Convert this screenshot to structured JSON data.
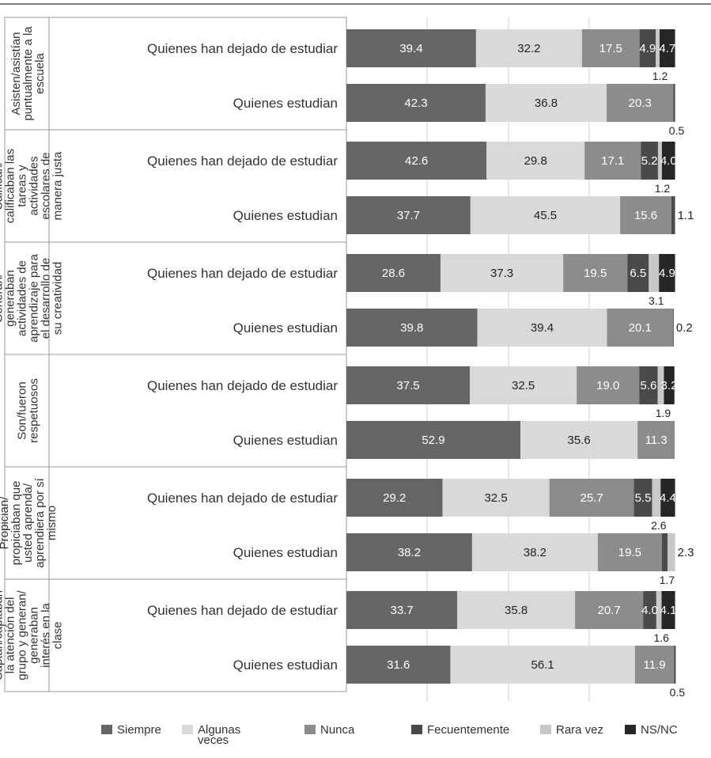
{
  "chart_data": {
    "type": "bar",
    "orientation": "horizontal",
    "stacked": true,
    "grid": true,
    "legend_position": "bottom",
    "xlim": [
      0,
      100
    ],
    "groups": [
      {
        "label_lines": [
          "Asisten/asistían",
          "puntualmente a la",
          "escuela"
        ],
        "rows": [
          {
            "label": "Quienes han dejado de estudiar",
            "values": [
              39.4,
              32.2,
              17.5,
              4.9,
              1.2,
              4.7
            ]
          },
          {
            "label": "Quienes estudian",
            "values": [
              42.3,
              36.8,
              20.3,
              0.5,
              0,
              0
            ]
          }
        ]
      },
      {
        "label_lines": [
          "Califican/",
          "calificaban las",
          "tareas y",
          "actividades",
          "escolares de",
          "manera justa"
        ],
        "rows": [
          {
            "label": "Quienes han dejado de estudiar",
            "values": [
              42.6,
              29.8,
              17.1,
              5.2,
              1.2,
              4.0
            ]
          },
          {
            "label": "Quienes estudian",
            "values": [
              37.7,
              45.5,
              15.6,
              1.1,
              0,
              0
            ]
          }
        ]
      },
      {
        "label_lines": [
          "Generan/",
          "generaban",
          "actividades de",
          "aprendizaje para",
          "el desarrollo de",
          "su creatividad"
        ],
        "rows": [
          {
            "label": "Quienes han dejado de estudiar",
            "values": [
              28.6,
              37.3,
              19.5,
              6.5,
              3.1,
              4.9
            ]
          },
          {
            "label": "Quienes estudian",
            "values": [
              39.8,
              39.4,
              20.1,
              0.2,
              0,
              0
            ]
          }
        ]
      },
      {
        "label_lines": [
          "Son/fueron",
          "respetuosos"
        ],
        "rows": [
          {
            "label": "Quienes han dejado de estudiar",
            "values": [
              37.5,
              32.5,
              19.0,
              5.6,
              1.9,
              3.2
            ]
          },
          {
            "label": "Quienes estudian",
            "values": [
              52.9,
              35.6,
              11.3,
              0,
              0,
              0
            ]
          }
        ]
      },
      {
        "label_lines": [
          "Propician/",
          "propiciaban que",
          "usted aprenda/",
          "aprendiera por sí",
          "mismo"
        ],
        "rows": [
          {
            "label": "Quienes han dejado de estudiar",
            "values": [
              29.2,
              32.5,
              25.7,
              5.5,
              2.6,
              4.4
            ]
          },
          {
            "label": "Quienes estudian",
            "values": [
              38.2,
              38.2,
              19.5,
              1.7,
              2.3,
              0
            ]
          }
        ]
      },
      {
        "label_lines": [
          "Captan/captaban",
          "la atención del",
          "grupo y generan/",
          "generaban",
          "interés en la",
          "clase"
        ],
        "rows": [
          {
            "label": "Quienes han dejado de estudiar",
            "values": [
              33.7,
              35.8,
              20.7,
              4.0,
              1.6,
              4.1
            ]
          },
          {
            "label": "Quienes estudian",
            "values": [
              31.6,
              56.1,
              11.9,
              0.5,
              0,
              0
            ]
          }
        ]
      }
    ],
    "series": [
      {
        "name": "Siempre",
        "color": "#666666"
      },
      {
        "name": "Algunas veces",
        "color": "#d9d9d9"
      },
      {
        "name": "Nunca",
        "color": "#8c8c8c"
      },
      {
        "name": "Fecuentemente",
        "color": "#4a4a4a"
      },
      {
        "name": "Rara vez",
        "color": "#c8c8c8"
      },
      {
        "name": "NS/NC",
        "color": "#262626"
      }
    ],
    "labels": [
      [
        [
          {
            "text": "39.4",
            "seg": 0
          },
          {
            "text": "32.2",
            "seg": 1
          },
          {
            "text": "17.5",
            "seg": 2
          },
          {
            "text": "4.9",
            "seg": 3
          },
          {
            "text": "4.7",
            "seg": 5
          },
          {
            "text": "1.2",
            "seg": 4,
            "below": true
          }
        ],
        [
          {
            "text": "42.3",
            "seg": 0
          },
          {
            "text": "36.8",
            "seg": 1
          },
          {
            "text": "20.3",
            "seg": 2
          },
          {
            "text": "0.5",
            "seg": 3,
            "below": true
          }
        ]
      ],
      [
        [
          {
            "text": "42.6",
            "seg": 0
          },
          {
            "text": "29.8",
            "seg": 1
          },
          {
            "text": "17.1",
            "seg": 2
          },
          {
            "text": "5.2",
            "seg": 3
          },
          {
            "text": "4.0",
            "seg": 5
          },
          {
            "text": "1.2",
            "seg": 4,
            "below": true
          }
        ],
        [
          {
            "text": "37.7",
            "seg": 0
          },
          {
            "text": "45.5",
            "seg": 1
          },
          {
            "text": "15.6",
            "seg": 2
          },
          {
            "text": "1.1",
            "seg": 3,
            "outside": true
          }
        ]
      ],
      [
        [
          {
            "text": "28.6",
            "seg": 0
          },
          {
            "text": "37.3",
            "seg": 1
          },
          {
            "text": "19.5",
            "seg": 2
          },
          {
            "text": "6.5",
            "seg": 3
          },
          {
            "text": "4.9",
            "seg": 5
          },
          {
            "text": "3.1",
            "seg": 4,
            "below": true
          }
        ],
        [
          {
            "text": "39.8",
            "seg": 0
          },
          {
            "text": "39.4",
            "seg": 1
          },
          {
            "text": "20.1",
            "seg": 2
          },
          {
            "text": "0.2",
            "seg": 3,
            "outside": true
          }
        ]
      ],
      [
        [
          {
            "text": "37.5",
            "seg": 0
          },
          {
            "text": "32.5",
            "seg": 1
          },
          {
            "text": "19.0",
            "seg": 2
          },
          {
            "text": "5.6",
            "seg": 3
          },
          {
            "text": "3.2",
            "seg": 5
          },
          {
            "text": "1.9",
            "seg": 4,
            "below": true
          }
        ],
        [
          {
            "text": "52.9",
            "seg": 0
          },
          {
            "text": "35.6",
            "seg": 1
          },
          {
            "text": "11.3",
            "seg": 2
          }
        ]
      ],
      [
        [
          {
            "text": "29.2",
            "seg": 0
          },
          {
            "text": "32.5",
            "seg": 1
          },
          {
            "text": "25.7",
            "seg": 2
          },
          {
            "text": "5.5",
            "seg": 3
          },
          {
            "text": "4.4",
            "seg": 5
          },
          {
            "text": "2.6",
            "seg": 4,
            "below": true
          }
        ],
        [
          {
            "text": "38.2",
            "seg": 0
          },
          {
            "text": "38.2",
            "seg": 1
          },
          {
            "text": "19.5",
            "seg": 2
          },
          {
            "text": "2.3",
            "seg": 4,
            "outside": true
          },
          {
            "text": "1.7",
            "seg": 3,
            "below": true
          }
        ]
      ],
      [
        [
          {
            "text": "33.7",
            "seg": 0
          },
          {
            "text": "35.8",
            "seg": 1
          },
          {
            "text": "20.7",
            "seg": 2
          },
          {
            "text": "4.0",
            "seg": 3
          },
          {
            "text": "4.1",
            "seg": 5
          },
          {
            "text": "1.6",
            "seg": 4,
            "below": true
          }
        ],
        [
          {
            "text": "31.6",
            "seg": 0
          },
          {
            "text": "56.1",
            "seg": 1
          },
          {
            "text": "11.9",
            "seg": 2
          },
          {
            "text": "0.5",
            "seg": 3,
            "below": true
          }
        ]
      ]
    ]
  }
}
